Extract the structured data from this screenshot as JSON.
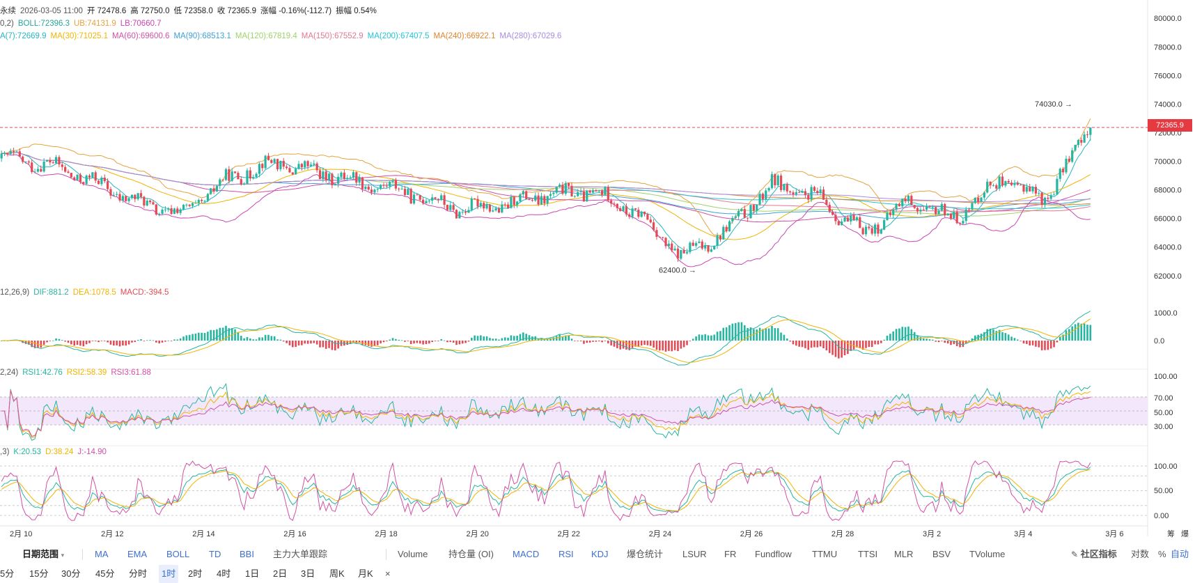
{
  "header": {
    "line1": [
      {
        "text": "永续",
        "color": "#333"
      },
      {
        "text": "2026-03-05 11:00",
        "color": "#555"
      },
      {
        "text": "开 72478.6",
        "color": "#222"
      },
      {
        "text": "高 72750.0",
        "color": "#222"
      },
      {
        "text": "低 72358.0",
        "color": "#222"
      },
      {
        "text": "收 72365.9",
        "color": "#222"
      },
      {
        "text": "涨幅 -0.16%(-112.7)",
        "color": "#222"
      },
      {
        "text": "振幅 0.54%",
        "color": "#222"
      }
    ],
    "line2": [
      {
        "text": "0,2)",
        "color": "#555"
      },
      {
        "text": "BOLL:72396.3",
        "color": "#26a69a"
      },
      {
        "text": "UB:74131.9",
        "color": "#e6a23c"
      },
      {
        "text": "LB:70660.7",
        "color": "#c946b4"
      }
    ],
    "line3": [
      {
        "text": "A(7):72669.9",
        "color": "#26b5c4"
      },
      {
        "text": "MA(30):71025.1",
        "color": "#f0b400"
      },
      {
        "text": "MA(60):69600.6",
        "color": "#d24fa6"
      },
      {
        "text": "MA(90):68513.1",
        "color": "#3ba1d6"
      },
      {
        "text": "MA(120):67819.4",
        "color": "#9ed26b"
      },
      {
        "text": "MA(150):67552.9",
        "color": "#e57792"
      },
      {
        "text": "MA(200):67407.5",
        "color": "#20c6d6"
      },
      {
        "text": "MA(240):66922.1",
        "color": "#e0842c"
      },
      {
        "text": "MA(280):67029.6",
        "color": "#a98be3"
      }
    ],
    "macd": [
      {
        "text": "12,26,9)",
        "color": "#555"
      },
      {
        "text": "DIF:881.2",
        "color": "#26b5a0"
      },
      {
        "text": "DEA:1078.5",
        "color": "#f0b400"
      },
      {
        "text": "MACD:-394.5",
        "color": "#e24b55"
      }
    ],
    "rsi": [
      {
        "text": "2,24)",
        "color": "#555"
      },
      {
        "text": "RSI1:42.76",
        "color": "#26b5a0"
      },
      {
        "text": "RSI2:58.39",
        "color": "#f0b400"
      },
      {
        "text": "RSI3:61.88",
        "color": "#d24fa6"
      }
    ],
    "kdj": [
      {
        "text": ",3)",
        "color": "#555"
      },
      {
        "text": "K:20.53",
        "color": "#26b5a0"
      },
      {
        "text": "D:38.24",
        "color": "#f0b400"
      },
      {
        "text": "J:-14.90",
        "color": "#d24fa6"
      }
    ]
  },
  "chart_data": {
    "type": "candlestick",
    "instrument_label": "永续",
    "interval": "1时",
    "current_price": "72365.9",
    "price_axis": {
      "ticks": [
        "80000.0",
        "78000.0",
        "76000.0",
        "74000.0",
        "72000.0",
        "70000.0",
        "68000.0",
        "66000.0",
        "64000.0",
        "62000.0"
      ],
      "range": [
        61600,
        80400
      ]
    },
    "x_axis": {
      "ticks": [
        "2月 10",
        "2月 12",
        "2月 14",
        "2月 16",
        "2月 18",
        "2月 20",
        "2月 22",
        "2月 24",
        "2月 26",
        "2月 28",
        "3月 2",
        "3月 4",
        "3月 6"
      ]
    },
    "annotations": {
      "high": "74030.0",
      "low": "62400.0"
    },
    "close_trend": [
      [
        "2月 9",
        70200
      ],
      [
        "2月 10",
        69800
      ],
      [
        "2月 11",
        68600
      ],
      [
        "2月 12",
        67100
      ],
      [
        "2月 13",
        66300
      ],
      [
        "2月 14",
        68800
      ],
      [
        "2月 15",
        69900
      ],
      [
        "2月 16",
        69200
      ],
      [
        "2月 17",
        68500
      ],
      [
        "2月 18",
        67800
      ],
      [
        "2月 19",
        66700
      ],
      [
        "2月 20",
        66900
      ],
      [
        "2月 21",
        67600
      ],
      [
        "2月 22",
        67900
      ],
      [
        "2月 23",
        66400
      ],
      [
        "2月 24",
        63300
      ],
      [
        "2月 25",
        65200
      ],
      [
        "2月 26",
        68400
      ],
      [
        "2月 27",
        67400
      ],
      [
        "2月 28",
        65000
      ],
      [
        "3月 1",
        67200
      ],
      [
        "3月 2",
        66000
      ],
      [
        "3月 3",
        68700
      ],
      [
        "3月 4",
        67400
      ],
      [
        "3月 5",
        72365.9
      ]
    ],
    "macd_axis": {
      "ticks": [
        "1000.0",
        "0.0"
      ]
    },
    "rsi_axis": {
      "ticks": [
        "100.00",
        "70.00",
        "50.00",
        "30.00"
      ]
    },
    "kdj_axis": {
      "ticks": [
        "100.00",
        "50.00",
        "0.00"
      ]
    },
    "right_labels": [
      "筹",
      "爆"
    ]
  },
  "toolbar1": {
    "range_label": "日期范围",
    "main_indicators": [
      "MA",
      "EMA",
      "BOLL",
      "TD",
      "BBI",
      "主力大单跟踪"
    ],
    "sub_indicators": [
      "Volume",
      "持仓量 (OI)",
      "MACD",
      "RSI",
      "KDJ",
      "爆仓统计",
      "LSUR",
      "FR",
      "Fundflow",
      "TTMU",
      "TTSI",
      "MLR",
      "BSV",
      "TVolume"
    ],
    "community": "社区指标",
    "log_label": "对数",
    "percent_label": "%",
    "auto_label": "自动"
  },
  "toolbar2": {
    "intervals": [
      "5分",
      "15分",
      "30分",
      "45分",
      "分时",
      "1时",
      "2时",
      "4时",
      "1日",
      "2日",
      "3日",
      "周K",
      "月K"
    ],
    "selected": "1时",
    "close_symbol": "×"
  },
  "colors": {
    "up": "#26b5a0",
    "down": "#e24b55",
    "dashed_price": "#e24b55"
  }
}
